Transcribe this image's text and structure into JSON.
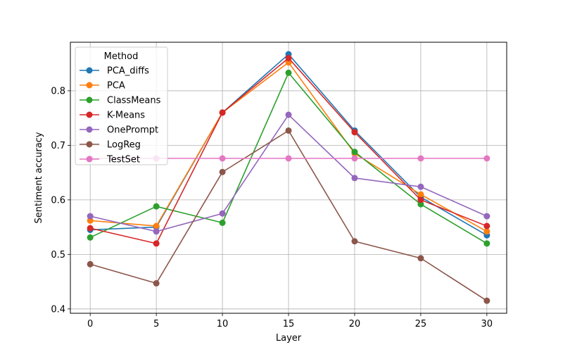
{
  "chart_data": {
    "type": "line",
    "x": [
      0,
      5,
      10,
      15,
      20,
      25,
      30
    ],
    "xlabel": "Layer",
    "ylabel": "Sentiment accuracy",
    "xlim": [
      -1.5,
      31.5
    ],
    "ylim": [
      0.392,
      0.889
    ],
    "xticks": [
      0,
      5,
      10,
      15,
      20,
      25,
      30
    ],
    "yticks": [
      0.4,
      0.5,
      0.6,
      0.7,
      0.8
    ],
    "grid": true,
    "legend": {
      "title": "Method",
      "placement": "upper-left"
    },
    "series": [
      {
        "name": "PCA_diffs",
        "color": "#1f77b4",
        "values": [
          0.545,
          0.55,
          0.76,
          0.867,
          0.727,
          0.605,
          0.535
        ]
      },
      {
        "name": "PCA",
        "color": "#ff7f0e",
        "values": [
          0.562,
          0.552,
          0.76,
          0.852,
          0.685,
          0.61,
          0.542
        ]
      },
      {
        "name": "ClassMeans",
        "color": "#2ca02c",
        "values": [
          0.531,
          0.588,
          0.558,
          0.833,
          0.688,
          0.592,
          0.52
        ]
      },
      {
        "name": "K-Means",
        "color": "#d62728",
        "values": [
          0.548,
          0.52,
          0.76,
          0.86,
          0.724,
          0.6,
          0.552
        ]
      },
      {
        "name": "OnePrompt",
        "color": "#9467bd",
        "values": [
          0.57,
          0.542,
          0.575,
          0.756,
          0.64,
          0.624,
          0.57
        ]
      },
      {
        "name": "LogReg",
        "color": "#8c564b",
        "values": [
          0.482,
          0.447,
          0.651,
          0.727,
          0.524,
          0.493,
          0.415
        ]
      },
      {
        "name": "TestSet",
        "color": "#e377c2",
        "values": [
          0.676,
          0.676,
          0.676,
          0.676,
          0.676,
          0.676,
          0.676
        ]
      }
    ]
  }
}
